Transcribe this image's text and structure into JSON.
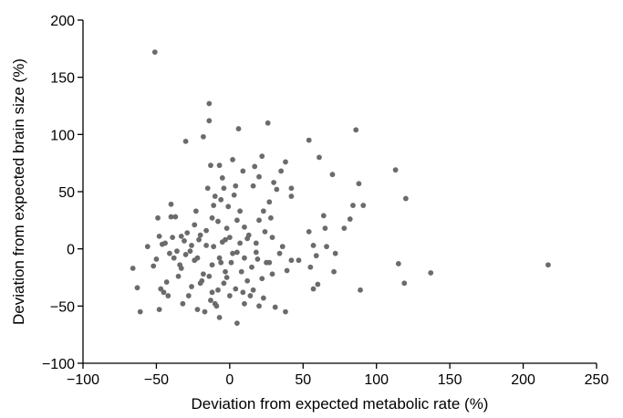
{
  "chart_data": {
    "type": "scatter",
    "title": "",
    "xlabel": "Deviation from expected metabolic rate (%)",
    "ylabel": "Deviation from expected brain size (%)",
    "xlim": [
      -100,
      250
    ],
    "ylim": [
      -100,
      200
    ],
    "xticks": [
      -100,
      -50,
      0,
      50,
      100,
      150,
      200,
      250
    ],
    "yticks": [
      -100,
      -50,
      0,
      50,
      100,
      150,
      200
    ],
    "xtick_labels": [
      "−100",
      "−50",
      "0",
      "50",
      "100",
      "150",
      "200",
      "250"
    ],
    "ytick_labels": [
      "−100",
      "−50",
      "0",
      "50",
      "100",
      "150",
      "200"
    ],
    "grid": false,
    "legend": "none",
    "point_color": "#6b6b6b",
    "points": [
      [
        -51,
        172
      ],
      [
        -14,
        127
      ],
      [
        -14,
        112
      ],
      [
        -30,
        94
      ],
      [
        -18,
        98
      ],
      [
        6,
        105
      ],
      [
        26,
        110
      ],
      [
        86,
        104
      ],
      [
        54,
        95
      ],
      [
        -13,
        73
      ],
      [
        -7,
        73
      ],
      [
        2,
        78
      ],
      [
        22,
        81
      ],
      [
        17,
        72
      ],
      [
        38,
        76
      ],
      [
        61,
        80
      ],
      [
        70,
        65
      ],
      [
        88,
        57
      ],
      [
        113,
        69
      ],
      [
        120,
        44
      ],
      [
        84,
        38
      ],
      [
        91,
        38
      ],
      [
        35,
        68
      ],
      [
        30,
        58
      ],
      [
        32,
        52
      ],
      [
        42,
        53
      ],
      [
        42,
        46
      ],
      [
        20,
        63
      ],
      [
        9,
        68
      ],
      [
        4,
        55
      ],
      [
        -5,
        62
      ],
      [
        -4,
        53
      ],
      [
        -15,
        53
      ],
      [
        -10,
        46
      ],
      [
        -11,
        38
      ],
      [
        -40,
        39
      ],
      [
        -23,
        33
      ],
      [
        -1,
        37
      ],
      [
        7,
        33
      ],
      [
        23,
        33
      ],
      [
        28,
        27
      ],
      [
        20,
        25
      ],
      [
        10,
        19
      ],
      [
        -2,
        18
      ],
      [
        -24,
        21
      ],
      [
        -20,
        12
      ],
      [
        -40,
        28
      ],
      [
        -49,
        27
      ],
      [
        -37,
        28
      ],
      [
        -44,
        5
      ],
      [
        -39,
        10
      ],
      [
        -46,
        4
      ],
      [
        -31,
        7
      ],
      [
        -33,
        11
      ],
      [
        -21,
        8
      ],
      [
        -16,
        3
      ],
      [
        -11,
        2
      ],
      [
        -5,
        6
      ],
      [
        0,
        10
      ],
      [
        7,
        5
      ],
      [
        12,
        9
      ],
      [
        18,
        5
      ],
      [
        24,
        15
      ],
      [
        29,
        10
      ],
      [
        54,
        15
      ],
      [
        64,
        29
      ],
      [
        57,
        3
      ],
      [
        72,
        -4
      ],
      [
        78,
        18
      ],
      [
        82,
        26
      ],
      [
        65,
        18
      ],
      [
        59,
        -6
      ],
      [
        55,
        -16
      ],
      [
        36,
        2
      ],
      [
        42,
        -10
      ],
      [
        39,
        -19
      ],
      [
        25,
        -12
      ],
      [
        18,
        -3
      ],
      [
        15,
        -16
      ],
      [
        10,
        -8
      ],
      [
        5,
        -3
      ],
      [
        1,
        -12
      ],
      [
        -3,
        -20
      ],
      [
        -7,
        -8
      ],
      [
        -12,
        -14
      ],
      [
        -14,
        -24
      ],
      [
        -18,
        -22
      ],
      [
        -22,
        -8
      ],
      [
        -27,
        -2
      ],
      [
        -34,
        -14
      ],
      [
        -38,
        -8
      ],
      [
        -43,
        -29
      ],
      [
        -47,
        -35
      ],
      [
        -45,
        -38
      ],
      [
        -42,
        -41
      ],
      [
        -32,
        -48
      ],
      [
        -28,
        -41
      ],
      [
        -22,
        -53
      ],
      [
        -17,
        -55
      ],
      [
        -12,
        -38
      ],
      [
        -10,
        -48
      ],
      [
        -8,
        -36
      ],
      [
        -4,
        -30
      ],
      [
        0,
        -41
      ],
      [
        4,
        -35
      ],
      [
        5,
        -65
      ],
      [
        10,
        -48
      ],
      [
        14,
        -41
      ],
      [
        20,
        -50
      ],
      [
        23,
        -43
      ],
      [
        27,
        -12
      ],
      [
        31,
        -51
      ],
      [
        38,
        -55
      ],
      [
        57,
        -35
      ],
      [
        60,
        -31
      ],
      [
        89,
        -36
      ],
      [
        115,
        -13
      ],
      [
        119,
        -30
      ],
      [
        137,
        -21
      ],
      [
        217,
        -14
      ],
      [
        -66,
        -17
      ],
      [
        -63,
        -34
      ],
      [
        -61,
        -55
      ],
      [
        -52,
        -15
      ],
      [
        -48,
        -53
      ],
      [
        -36,
        -2
      ],
      [
        -30,
        -5
      ],
      [
        -26,
        3
      ],
      [
        -19,
        -28
      ],
      [
        -13,
        -45
      ],
      [
        -9,
        -50
      ],
      [
        -6,
        -12
      ],
      [
        -2,
        -25
      ],
      [
        2,
        -4
      ],
      [
        8,
        -20
      ],
      [
        12,
        -28
      ],
      [
        16,
        -36
      ],
      [
        22,
        -26
      ],
      [
        13,
        12
      ],
      [
        5,
        25
      ],
      [
        -8,
        24
      ],
      [
        -16,
        16
      ],
      [
        -20,
        -30
      ],
      [
        -26,
        -33
      ],
      [
        -35,
        -24
      ],
      [
        -41,
        -4
      ],
      [
        -29,
        14
      ],
      [
        -12,
        27
      ],
      [
        -6,
        43
      ],
      [
        3,
        47
      ],
      [
        16,
        55
      ],
      [
        27,
        41
      ],
      [
        34,
        -4
      ],
      [
        47,
        -10
      ],
      [
        66,
        2
      ],
      [
        71,
        -20
      ],
      [
        -50,
        -9
      ],
      [
        -56,
        2
      ],
      [
        -48,
        11
      ],
      [
        -33,
        -17
      ],
      [
        -24,
        -10
      ],
      [
        -3,
        8
      ],
      [
        9,
        -38
      ],
      [
        19,
        -9
      ],
      [
        29,
        -22
      ],
      [
        -7,
        -60
      ]
    ]
  }
}
